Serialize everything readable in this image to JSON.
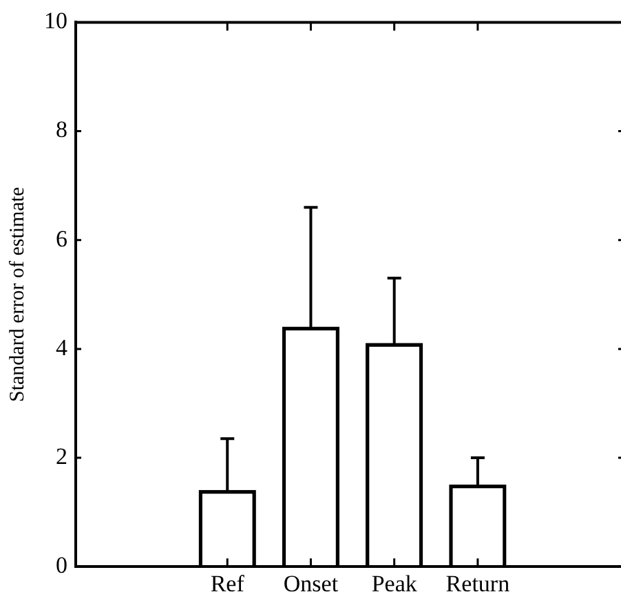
{
  "chart_data": {
    "type": "bar",
    "ylabel": "Standard error of estimate",
    "categories": [
      "Ref",
      "Onset",
      "Peak",
      "Return"
    ],
    "values": [
      1.4,
      4.4,
      4.1,
      1.5
    ],
    "errors": [
      [
        1.4,
        2.35
      ],
      [
        4.4,
        6.6
      ],
      [
        4.1,
        5.3
      ],
      [
        1.5,
        2.0
      ]
    ],
    "color": "#000000",
    "ylim": [
      0,
      10
    ],
    "yticks": [
      0,
      2,
      4,
      6,
      8,
      10
    ],
    "grid": false,
    "legend": false
  }
}
